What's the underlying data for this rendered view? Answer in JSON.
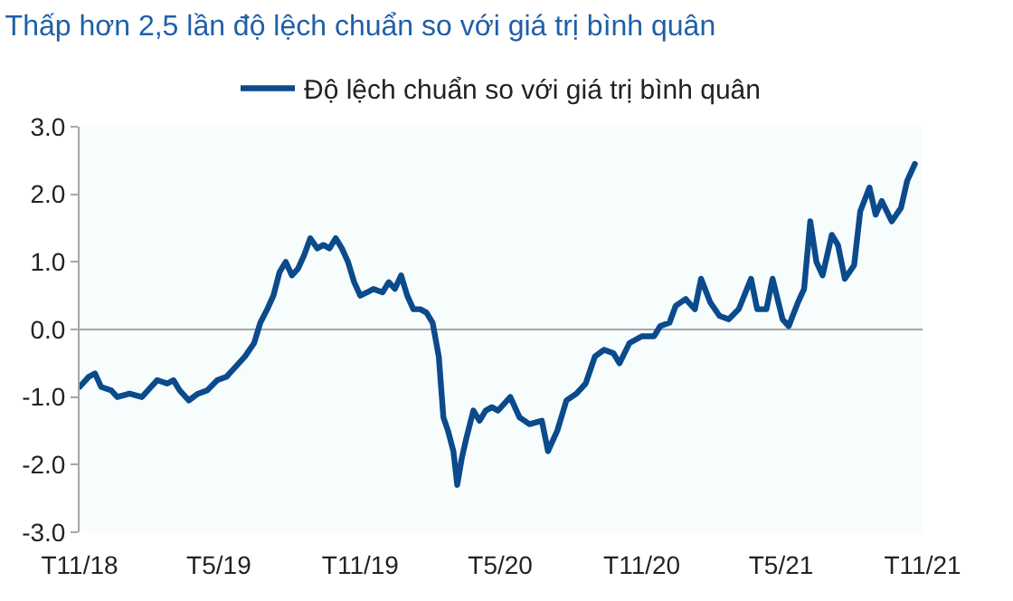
{
  "chart_data": {
    "type": "line",
    "title": "Thấp hơn 2,5 lần độ lệch chuẩn so với giá trị bình quân",
    "x": [
      "2018-11-01",
      "2018-11-13",
      "2018-11-21",
      "2018-11-29",
      "2018-12-12",
      "2018-12-20",
      "2019-01-05",
      "2019-01-21",
      "2019-02-02",
      "2019-02-10",
      "2019-02-23",
      "2019-03-03",
      "2019-03-11",
      "2019-03-23",
      "2019-04-04",
      "2019-04-16",
      "2019-04-29",
      "2019-05-11",
      "2019-05-23",
      "2019-06-04",
      "2019-06-16",
      "2019-06-24",
      "2019-07-03",
      "2019-07-11",
      "2019-07-19",
      "2019-07-27",
      "2019-08-04",
      "2019-08-12",
      "2019-08-20",
      "2019-08-28",
      "2019-09-06",
      "2019-09-14",
      "2019-09-22",
      "2019-09-30",
      "2019-10-08",
      "2019-10-16",
      "2019-10-24",
      "2019-11-01",
      "2019-11-10",
      "2019-11-18",
      "2019-11-30",
      "2019-12-08",
      "2019-12-16",
      "2019-12-24",
      "2020-01-01",
      "2020-01-09",
      "2020-01-18",
      "2020-01-26",
      "2020-02-03",
      "2020-02-11",
      "2020-02-17",
      "2020-02-23",
      "2020-03-01",
      "2020-03-06",
      "2020-03-12",
      "2020-03-18",
      "2020-03-27",
      "2020-04-04",
      "2020-04-12",
      "2020-04-20",
      "2020-04-28",
      "2020-05-14",
      "2020-05-26",
      "2020-06-08",
      "2020-06-24",
      "2020-07-02",
      "2020-07-14",
      "2020-07-26",
      "2020-08-08",
      "2020-08-20",
      "2020-09-01",
      "2020-09-13",
      "2020-09-25",
      "2020-10-03",
      "2020-10-16",
      "2020-11-01",
      "2020-11-17",
      "2020-11-25",
      "2020-12-07",
      "2020-12-15",
      "2020-12-28",
      "2021-01-09",
      "2021-01-17",
      "2021-01-29",
      "2021-02-10",
      "2021-02-22",
      "2021-03-07",
      "2021-03-23",
      "2021-03-31",
      "2021-04-12",
      "2021-04-20",
      "2021-05-03",
      "2021-05-11",
      "2021-05-23",
      "2021-05-31",
      "2021-06-08",
      "2021-06-16",
      "2021-06-24",
      "2021-07-06",
      "2021-07-14",
      "2021-07-23",
      "2021-08-04",
      "2021-08-12",
      "2021-08-24",
      "2021-09-01",
      "2021-09-09",
      "2021-09-22",
      "2021-10-04",
      "2021-10-12",
      "2021-10-22"
    ],
    "series": [
      {
        "name": "Độ lệch chuẩn so với giá trị bình quân",
        "color": "#0b4a8b",
        "values": [
          -0.85,
          -0.7,
          -0.65,
          -0.85,
          -0.9,
          -1.0,
          -0.95,
          -1.0,
          -0.85,
          -0.75,
          -0.8,
          -0.75,
          -0.9,
          -1.05,
          -0.95,
          -0.9,
          -0.75,
          -0.7,
          -0.55,
          -0.4,
          -0.2,
          0.1,
          0.3,
          0.5,
          0.85,
          1.0,
          0.8,
          0.9,
          1.1,
          1.35,
          1.2,
          1.25,
          1.2,
          1.35,
          1.2,
          1.0,
          0.7,
          0.5,
          0.55,
          0.6,
          0.55,
          0.7,
          0.6,
          0.8,
          0.5,
          0.3,
          0.3,
          0.25,
          0.1,
          -0.4,
          -1.3,
          -1.5,
          -1.8,
          -2.3,
          -1.9,
          -1.6,
          -1.2,
          -1.35,
          -1.2,
          -1.15,
          -1.2,
          -1.0,
          -1.3,
          -1.4,
          -1.35,
          -1.8,
          -1.5,
          -1.05,
          -0.95,
          -0.8,
          -0.4,
          -0.3,
          -0.35,
          -0.5,
          -0.2,
          -0.1,
          -0.1,
          0.05,
          0.1,
          0.35,
          0.45,
          0.3,
          0.75,
          0.4,
          0.2,
          0.15,
          0.3,
          0.75,
          0.3,
          0.3,
          0.75,
          0.15,
          0.05,
          0.4,
          0.6,
          1.6,
          1.0,
          0.8,
          1.4,
          1.25,
          0.75,
          0.95,
          1.75,
          2.1,
          1.7,
          1.9,
          1.6,
          1.8,
          2.2,
          2.45
        ]
      }
    ],
    "xlim": [
      "2018-11-01",
      "2021-11-01"
    ],
    "xticks": [
      {
        "value": "2018-11-01",
        "label": "T11/18"
      },
      {
        "value": "2019-05-01",
        "label": "T5/19"
      },
      {
        "value": "2019-11-01",
        "label": "T11/19"
      },
      {
        "value": "2020-05-01",
        "label": "T5/20"
      },
      {
        "value": "2020-11-01",
        "label": "T11/20"
      },
      {
        "value": "2021-05-01",
        "label": "T5/21"
      },
      {
        "value": "2021-11-01",
        "label": "T11/21"
      }
    ],
    "ylim": [
      -3,
      3
    ],
    "yticks": [
      {
        "value": 3,
        "label": "3.0"
      },
      {
        "value": 2,
        "label": "2.0"
      },
      {
        "value": 1,
        "label": "1.0"
      },
      {
        "value": 0,
        "label": "0.0"
      },
      {
        "value": -1,
        "label": "-1.0"
      },
      {
        "value": -2,
        "label": "-2.0"
      },
      {
        "value": -3,
        "label": "-3.0"
      }
    ],
    "ref_lines": [
      {
        "axis": "y",
        "value": 0,
        "color": "#a6a6a6"
      }
    ],
    "grid": false,
    "legend": "top",
    "marker": "none",
    "line_style": "solid"
  }
}
